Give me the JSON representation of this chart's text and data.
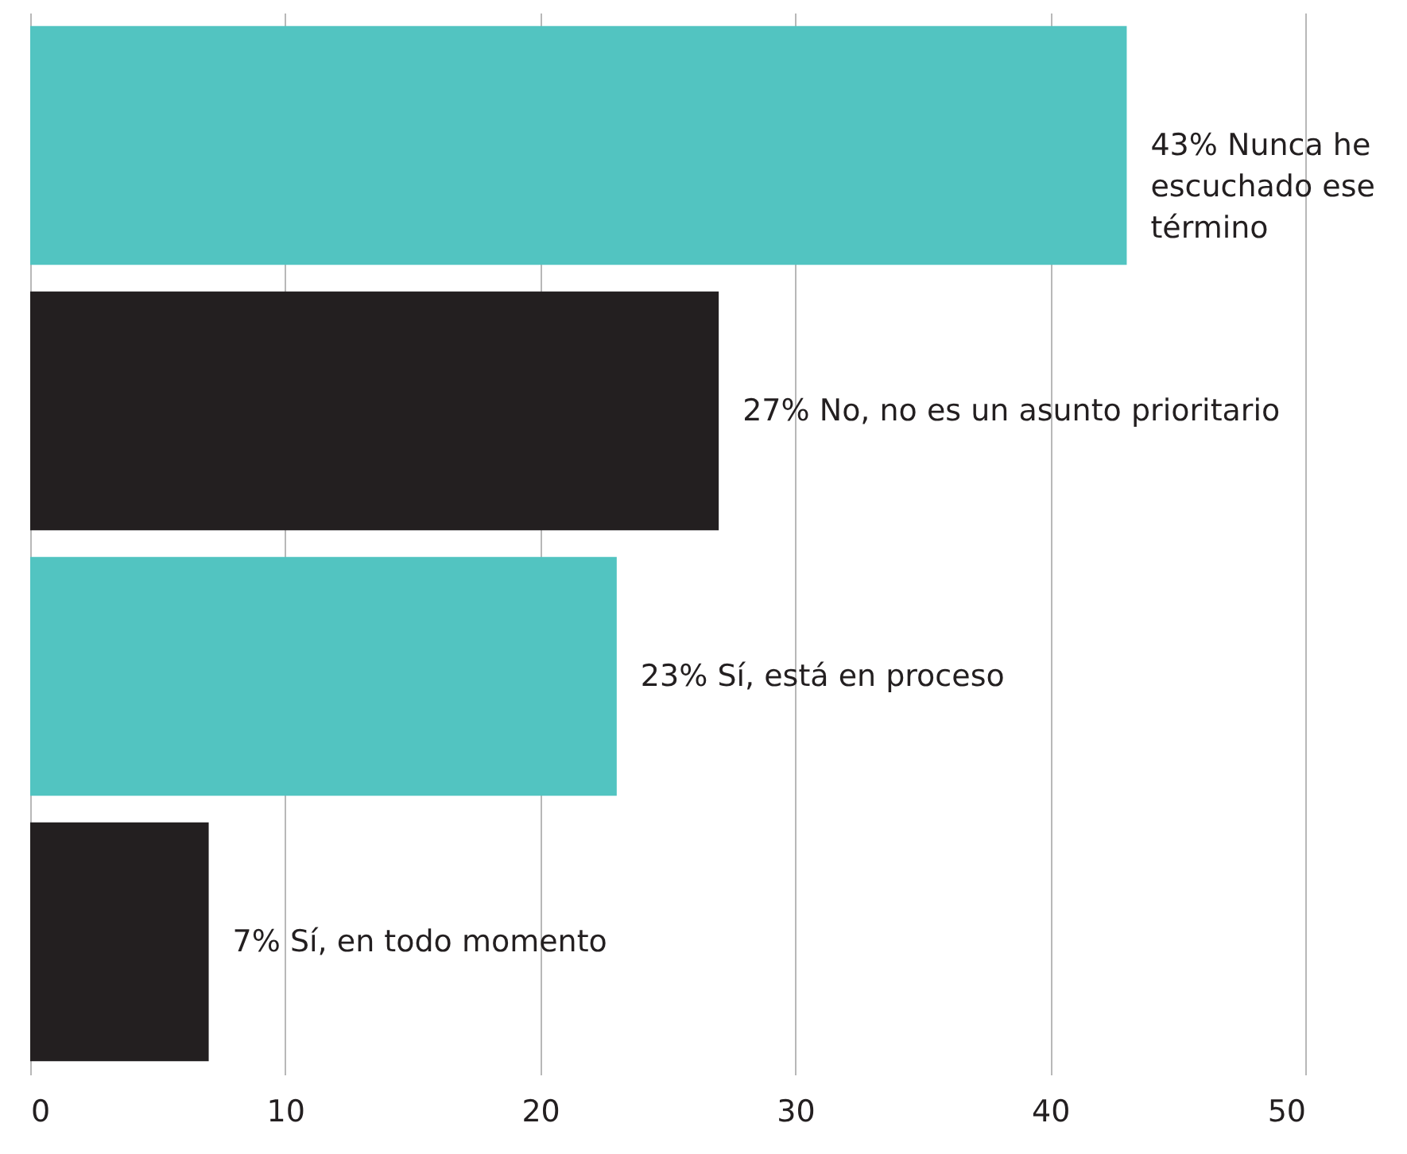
{
  "chart_data": {
    "type": "bar",
    "orientation": "horizontal",
    "categories": [
      "Nunca he escuchado ese término",
      "No, no es un asunto prioritario",
      "Sí, está en proceso",
      "Sí, en todo momento"
    ],
    "values": [
      43,
      27,
      23,
      7
    ],
    "colors": [
      "#52c4c1",
      "#231f20",
      "#52c4c1",
      "#231f20"
    ],
    "value_labels": [
      "43%",
      "27%",
      "23%",
      "7%"
    ],
    "xlim": [
      0,
      50
    ],
    "xticks": [
      0,
      10,
      20,
      30,
      40,
      50
    ],
    "grid": "x",
    "tick_labels": "x"
  }
}
